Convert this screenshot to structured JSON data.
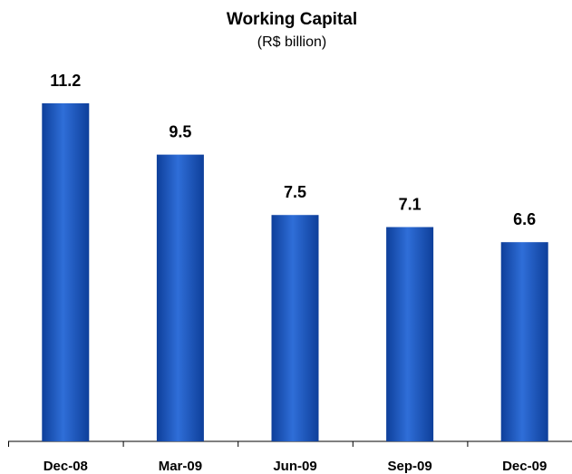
{
  "chart_data": {
    "type": "bar",
    "title": "Working Capital",
    "subtitle": "(R$ billion)",
    "categories": [
      "Dec-08",
      "Mar-09",
      "Jun-09",
      "Sep-09",
      "Dec-09"
    ],
    "values": [
      11.2,
      9.5,
      7.5,
      7.1,
      6.6
    ],
    "color": "#1a56c0"
  }
}
